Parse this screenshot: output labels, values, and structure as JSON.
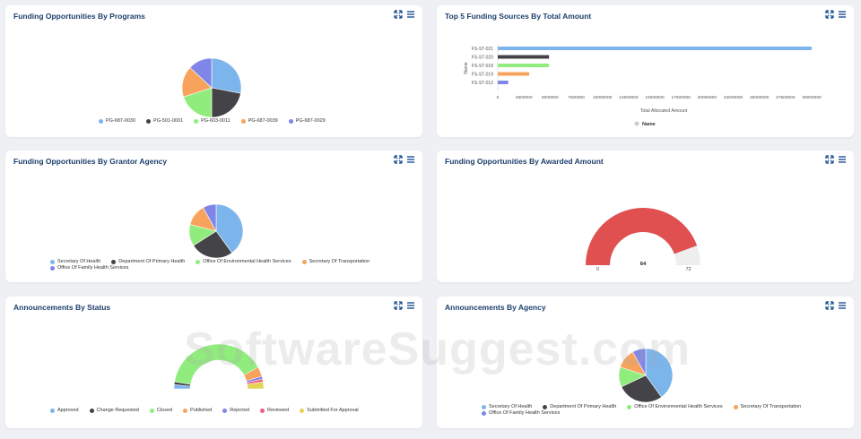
{
  "colors": {
    "blue": "#7cb5ec",
    "dark": "#434348",
    "green": "#90ed7d",
    "orange": "#f7a35c",
    "purple": "#8085e9",
    "red": "#f15c80",
    "yellow": "#e4d354",
    "gauge_red": "#e05050",
    "gauge_bg": "#eeeeee",
    "title": "#1c3f6b"
  },
  "cards": {
    "programs": {
      "title": "Funding Opportunities By Programs",
      "legend": [
        "PG-687-0030",
        "PG-501-0001",
        "PG-603-0011",
        "PG-687-0039",
        "PG-687-0029"
      ]
    },
    "top_sources": {
      "title": "Top 5 Funding Sources By Total Amount",
      "y_title": "Name",
      "x_title": "Total Allocated Amount",
      "legend": "Name",
      "ticks": [
        "0",
        "2500000",
        "5000000",
        "7500000",
        "10000000",
        "12500000",
        "15000000",
        "17500000",
        "20000000",
        "22500000",
        "25000000",
        "27500000",
        "30000000"
      ]
    },
    "grantor": {
      "title": "Funding Opportunities By Grantor Agency",
      "legend": [
        "Secretary Of Health",
        "Department Of Primary Health",
        "Office Of Environmental Health Services",
        "Secretary Of Transportation",
        "Office Of Family Health Services"
      ]
    },
    "awarded": {
      "title": "Funding Opportunities By Awarded Amount",
      "min_label": "0",
      "max_label": "72",
      "value_label": "64"
    },
    "ann_status": {
      "title": "Announcements By Status",
      "legend": [
        "Approved",
        "Change Requested",
        "Closed",
        "Published",
        "Rejected",
        "Reviewed",
        "Submitted For Approval"
      ]
    },
    "ann_agency": {
      "title": "Announcements By Agency",
      "legend": [
        "Secretary Of Health",
        "Department Of Primary Health",
        "Office Of Environmental Health Services",
        "Secretary Of Transportation",
        "Office Of Family Health Services"
      ]
    }
  },
  "watermark": "SoftwareSuggest.com",
  "chart_data": [
    {
      "type": "pie",
      "title": "Funding Opportunities By Programs",
      "categories": [
        "PG-687-0030",
        "PG-501-0001",
        "PG-603-0011",
        "PG-687-0039",
        "PG-687-0029"
      ],
      "values": [
        28,
        22,
        20,
        17,
        13
      ]
    },
    {
      "type": "bar",
      "orientation": "horizontal",
      "title": "Top 5 Funding Sources By Total Amount",
      "categories": [
        "FS-ST-021",
        "FS-ST-020",
        "FS-ST-018",
        "FS-ST-019",
        "FS-ST-012"
      ],
      "values": [
        30000000,
        4900000,
        4900000,
        3000000,
        1000000
      ],
      "series_colors": [
        "#7cb5ec",
        "#434348",
        "#90ed7d",
        "#f7a35c",
        "#8085e9"
      ],
      "xlabel": "Total Allocated Amount",
      "ylabel": "Name",
      "xlim": [
        0,
        30000000
      ]
    },
    {
      "type": "pie",
      "title": "Funding Opportunities By Grantor Agency",
      "categories": [
        "Secretary Of Health",
        "Department Of Primary Health",
        "Office Of Environmental Health Services",
        "Secretary Of Transportation",
        "Office Of Family Health Services"
      ],
      "values": [
        40,
        26,
        13,
        13,
        8
      ]
    },
    {
      "type": "gauge",
      "title": "Funding Opportunities By Awarded Amount",
      "value": 64,
      "min": 0,
      "max": 72
    },
    {
      "type": "pie",
      "subtype": "semi-donut",
      "title": "Announcements By Status",
      "categories": [
        "Approved",
        "Change Requested",
        "Closed",
        "Published",
        "Rejected",
        "Reviewed",
        "Submitted For Approval"
      ],
      "values": [
        3,
        2,
        79,
        7,
        2,
        2,
        5
      ]
    },
    {
      "type": "pie",
      "title": "Announcements By Agency",
      "categories": [
        "Secretary Of Health",
        "Department Of Primary Health",
        "Office Of Environmental Health Services",
        "Secretary Of Transportation",
        "Office Of Family Health Services"
      ],
      "values": [
        40,
        28,
        12,
        12,
        8
      ]
    }
  ]
}
